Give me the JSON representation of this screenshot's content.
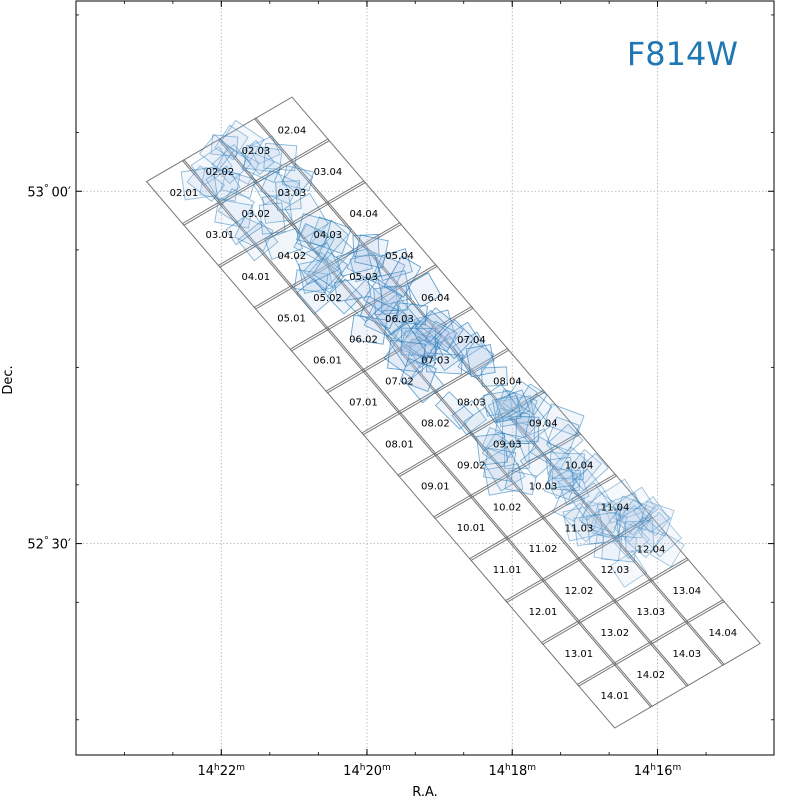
{
  "chart_data": {
    "type": "scatter",
    "title": "F814W",
    "xlabel": "R.A.",
    "ylabel": "Dec.",
    "xlim": [
      14.4,
      14.24
    ],
    "ylim": [
      52.2,
      53.27
    ],
    "grid": true,
    "x_ticks": [
      {
        "value": 14.3667,
        "label_main": "14",
        "label_h": "h",
        "label_mid": "22",
        "label_m": "m"
      },
      {
        "value": 14.3333,
        "label_main": "14",
        "label_h": "h",
        "label_mid": "20",
        "label_m": "m"
      },
      {
        "value": 14.3,
        "label_main": "14",
        "label_h": "h",
        "label_mid": "18",
        "label_m": "m"
      },
      {
        "value": 14.2667,
        "label_main": "14",
        "label_h": "h",
        "label_mid": "16",
        "label_m": "m"
      }
    ],
    "y_ticks": [
      {
        "value": 53.0,
        "label_deg": "53",
        "label_sym": "°",
        "label_min": "00′"
      },
      {
        "value": 52.5,
        "label_deg": "52",
        "label_sym": "°",
        "label_min": "30′"
      }
    ],
    "tile_labels": [
      "02.01",
      "02.02",
      "02.03",
      "02.04",
      "03.01",
      "03.02",
      "03.03",
      "03.04",
      "04.01",
      "04.02",
      "04.03",
      "04.04",
      "05.01",
      "05.02",
      "05.03",
      "05.04",
      "06.01",
      "06.02",
      "06.03",
      "06.04",
      "07.01",
      "07.02",
      "07.03",
      "07.04",
      "08.01",
      "08.02",
      "08.03",
      "08.04",
      "09.01",
      "09.02",
      "09.03",
      "09.04",
      "10.01",
      "10.02",
      "10.03",
      "10.04",
      "11.01",
      "11.02",
      "11.03",
      "11.04",
      "12.01",
      "12.02",
      "12.03",
      "12.04",
      "13.01",
      "13.02",
      "13.03",
      "13.04",
      "14.01",
      "14.02",
      "14.03",
      "14.04"
    ],
    "colors": {
      "tile_edge": "#777777",
      "exposure_edge": "#1f77b4",
      "exposure_fill": "#aec7e8",
      "title": "#1f77b4",
      "grid": "#b0b0b0"
    }
  }
}
